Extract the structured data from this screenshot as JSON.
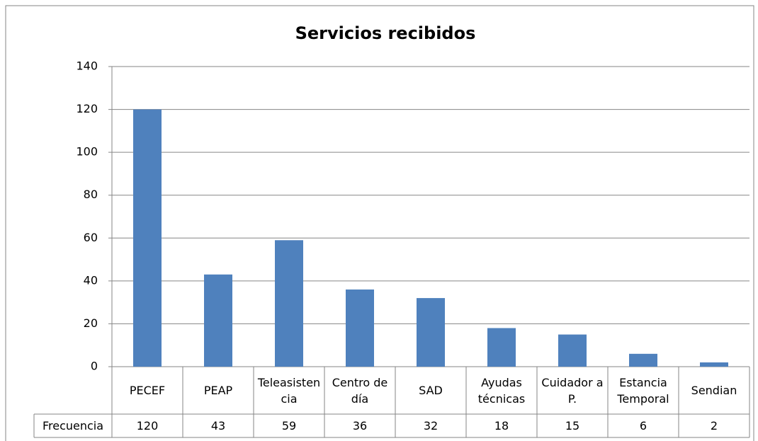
{
  "chart_data": {
    "type": "bar",
    "title": "Servicios recibidos",
    "categories": [
      "PECEF",
      "PEAP",
      "Teleasistencia",
      "Centro de día",
      "SAD",
      "Ayudas técnicas",
      "Cuidador a P.",
      "Estancia Temporal",
      "Sendian"
    ],
    "series": [
      {
        "name": "Frecuencia",
        "color": "#4f81bd",
        "values": [
          120,
          43,
          59,
          36,
          32,
          18,
          15,
          6,
          2
        ]
      }
    ],
    "ylim": [
      0,
      140
    ],
    "yticks": [
      0,
      20,
      40,
      60,
      80,
      100,
      120,
      140
    ],
    "grid": true,
    "data_table": true
  }
}
